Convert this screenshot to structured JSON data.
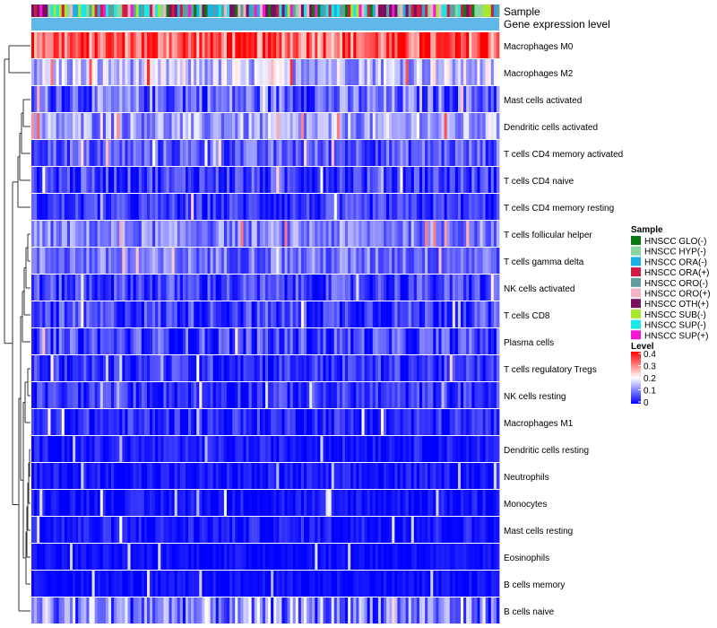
{
  "chart_data": {
    "type": "heatmap",
    "title": "",
    "annotation_labels": [
      "Sample",
      "Gene expression level"
    ],
    "rows": [
      "Macrophages M0",
      "Macrophages M2",
      "Mast cells activated",
      "Dendritic cells activated",
      "T cells CD4 memory activated",
      "T cells CD4 naive",
      "T cells CD4 memory resting",
      "T cells follicular helper",
      "T cells gamma delta",
      "NK cells activated",
      "T cells CD8",
      "Plasma cells",
      "T cells regulatory  Tregs",
      "NK cells resting",
      "Macrophages M1",
      "Dendritic cells resting",
      "Neutrophils",
      "Monocytes",
      "Mast cells resting",
      "Eosinophils",
      "B cells memory",
      "B cells naive"
    ],
    "row_means": [
      0.33,
      0.15,
      0.08,
      0.12,
      0.07,
      0.05,
      0.04,
      0.1,
      0.09,
      0.05,
      0.05,
      0.05,
      0.04,
      0.04,
      0.03,
      0.02,
      0.015,
      0.015,
      0.02,
      0.01,
      0.01,
      0.1
    ],
    "row_spread": [
      0.1,
      0.08,
      0.08,
      0.07,
      0.06,
      0.06,
      0.05,
      0.06,
      0.06,
      0.06,
      0.06,
      0.07,
      0.05,
      0.05,
      0.05,
      0.03,
      0.03,
      0.03,
      0.035,
      0.02,
      0.02,
      0.1
    ],
    "n_samples": 170,
    "legend_sample": {
      "title": "Sample",
      "items": [
        {
          "label": "HNSCC GLO(-)",
          "color": "#0a7a12"
        },
        {
          "label": "HNSCC HYP(-)",
          "color": "#8ad6a0"
        },
        {
          "label": "HNSCC ORA(-)",
          "color": "#1ab0e6"
        },
        {
          "label": "HNSCC ORA(+)",
          "color": "#d21a44"
        },
        {
          "label": "HNSCC ORO(-)",
          "color": "#5f9e9c"
        },
        {
          "label": "HNSCC ORO(+)",
          "color": "#f4b4c6"
        },
        {
          "label": "HNSCC OTH(+)",
          "color": "#7a1060"
        },
        {
          "label": "HNSCC SUB(-)",
          "color": "#a6e82e"
        },
        {
          "label": "HNSCC SUP(-)",
          "color": "#1ae8e4"
        },
        {
          "label": "HNSCC SUP(+)",
          "color": "#f21ad6"
        }
      ]
    },
    "legend_level": {
      "title": "Level",
      "ticks": [
        "0.4",
        "0.3",
        "0.2",
        "0.1",
        "0"
      ],
      "range": [
        0,
        0.4
      ],
      "colors": [
        "#0000ff",
        "#ffffff",
        "#ff0000"
      ]
    },
    "expression_bar_color": "#5fb8e8"
  }
}
